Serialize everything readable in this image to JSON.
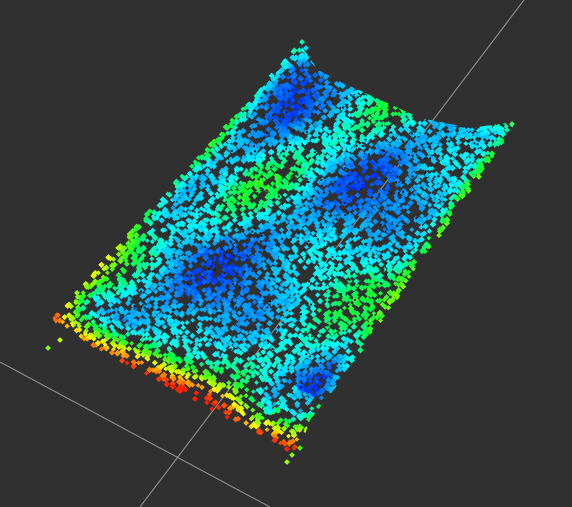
{
  "viewer": {
    "background_color": "#303030",
    "grid_color": "#a0a0a0",
    "colormap": [
      "#ff2000",
      "#ff8000",
      "#ffff00",
      "#7fff00",
      "#00ff40",
      "#00ffff",
      "#00a0ff",
      "#0030ff",
      "#8000ff"
    ]
  },
  "point_cloud": {
    "object": "point-cloud-surface",
    "height_colormap": "rainbow"
  }
}
